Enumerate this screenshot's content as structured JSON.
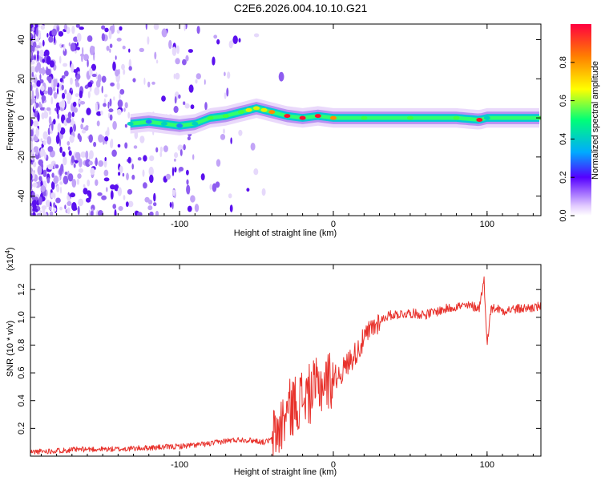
{
  "title": "C2E6.2026.004.10.10.G21",
  "colors": {
    "snr_line": "#e8322c",
    "frame": "#000000",
    "background": "#ffffff"
  },
  "chart_data": [
    {
      "type": "heatmap",
      "xlabel": "Height of straight line (km)",
      "ylabel": "Frequency (Hz)",
      "xlim": [
        -197,
        135
      ],
      "ylim": [
        -50,
        48
      ],
      "xticks": [
        -100,
        0,
        100
      ],
      "xtick_labels": [
        "-100",
        "0",
        "100"
      ],
      "yticks": [
        -40,
        -20,
        0,
        20,
        40
      ],
      "ytick_labels": [
        "-40",
        "-20",
        "0",
        "20",
        "40"
      ],
      "ridge": {
        "description": "Frequency ridge of maximum spectral amplitude",
        "x": [
          -132,
          -120,
          -110,
          -100,
          -90,
          -80,
          -70,
          -60,
          -55,
          -50,
          -45,
          -40,
          -30,
          -20,
          -10,
          0,
          20,
          50,
          80,
          95,
          100,
          135
        ],
        "frequency": [
          -3,
          -2,
          -3,
          -4,
          -3,
          0,
          1,
          3,
          4,
          5,
          4,
          3,
          1,
          0,
          1,
          0,
          0,
          0,
          0,
          -1,
          0,
          0
        ],
        "amplitude": [
          0.45,
          0.4,
          0.45,
          0.4,
          0.5,
          0.55,
          0.6,
          0.6,
          0.65,
          0.7,
          0.75,
          0.8,
          0.9,
          0.95,
          0.95,
          0.8,
          0.6,
          0.55,
          0.6,
          0.9,
          0.5,
          0.55
        ]
      },
      "colorbar": {
        "label": "Normalized spectral amplitude",
        "range": [
          0,
          1
        ],
        "ticks": [
          0.0,
          0.2,
          0.4,
          0.6,
          0.8
        ],
        "tick_labels": [
          "0.0",
          "0.2",
          "0.4",
          "0.6",
          "0.8"
        ]
      }
    },
    {
      "type": "line",
      "xlabel": "Height of straight line (km)",
      "ylabel": "SNR (10 * v/v)",
      "y_multiplier": "(x10",
      "y_multiplier_exp": "4",
      "y_multiplier_close": ")",
      "xlim": [
        -197,
        135
      ],
      "ylim": [
        0,
        1.38
      ],
      "xticks": [
        -100,
        0,
        100
      ],
      "xtick_labels": [
        "-100",
        "0",
        "100"
      ],
      "yticks": [
        0.2,
        0.4,
        0.6,
        0.8,
        1.0,
        1.2
      ],
      "ytick_labels": [
        "0.2",
        "0.4",
        "0.6",
        "0.8",
        "1.0",
        "1.2"
      ],
      "series": [
        {
          "name": "SNR",
          "x": [
            -197,
            -180,
            -160,
            -140,
            -120,
            -100,
            -90,
            -80,
            -70,
            -60,
            -50,
            -45,
            -40,
            -35,
            -30,
            -25,
            -20,
            -15,
            -10,
            -5,
            0,
            5,
            10,
            15,
            20,
            25,
            30,
            35,
            40,
            50,
            60,
            70,
            80,
            90,
            95,
            98,
            100,
            102,
            105,
            110,
            120,
            130,
            135
          ],
          "y": [
            0.03,
            0.04,
            0.05,
            0.05,
            0.06,
            0.07,
            0.08,
            0.09,
            0.11,
            0.12,
            0.11,
            0.1,
            0.12,
            0.2,
            0.32,
            0.38,
            0.42,
            0.45,
            0.5,
            0.54,
            0.56,
            0.6,
            0.68,
            0.75,
            0.84,
            0.92,
            0.97,
            1.01,
            1.02,
            1.03,
            1.02,
            1.05,
            1.08,
            1.08,
            1.07,
            1.28,
            0.78,
            1.05,
            1.07,
            1.05,
            1.06,
            1.07,
            1.08
          ]
        }
      ]
    }
  ]
}
